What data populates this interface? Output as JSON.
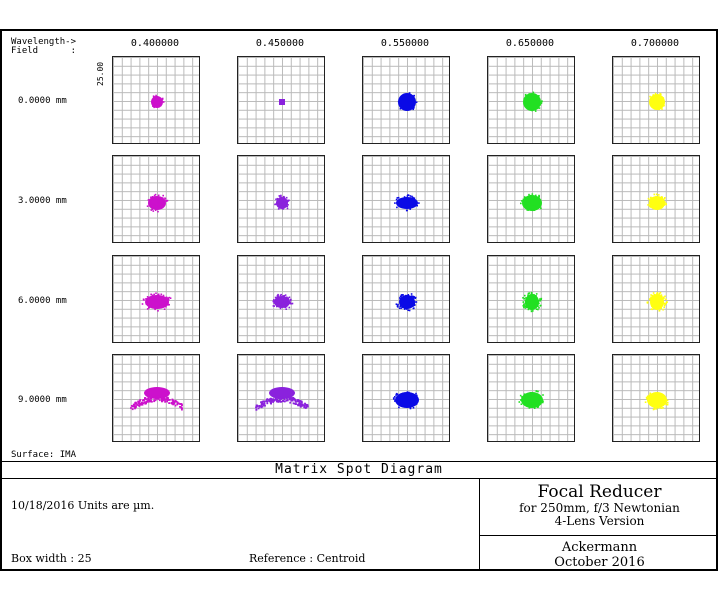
{
  "header": {
    "wavelength_label": "Wavelength->",
    "field_label": "Field      :"
  },
  "wavelengths": [
    "0.400000",
    "0.450000",
    "0.550000",
    "0.650000",
    "0.700000"
  ],
  "fields": [
    "0.0000 mm",
    "3.0000 mm",
    "6.0000 mm",
    "9.0000 mm"
  ],
  "scale_label": "25.00",
  "surface_label": "Surface: IMA",
  "diagram_title": "Matrix Spot Diagram",
  "date_units": "10/18/2016  Units are µm.",
  "box_width": "Box width  : 25",
  "reference": "Reference  : Centroid",
  "design": {
    "title": "Focal Reducer",
    "subtitle1": "for 250mm, f/3 Newtonian",
    "subtitle2": "4-Lens Version",
    "author": "Ackermann",
    "date": "October 2016"
  },
  "colors": {
    "wl1": "#cc11cc",
    "wl2": "#8a22dd",
    "wl3": "#0a0ae6",
    "wl4": "#22e022",
    "wl5": "#ffff11"
  }
}
